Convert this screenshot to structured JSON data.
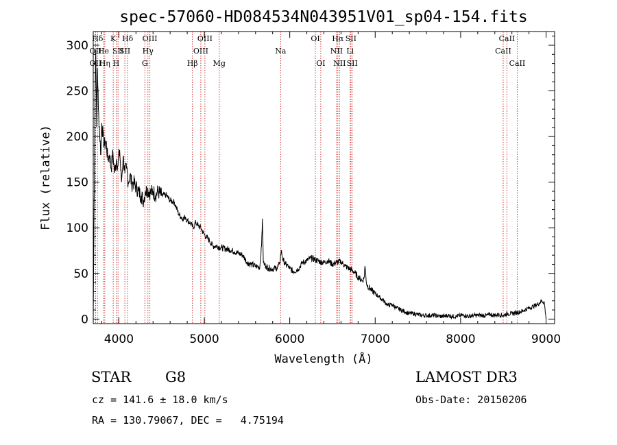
{
  "chart_data": {
    "type": "line",
    "title": "spec-57060-HD084534N043951V01_sp04-154.fits",
    "xlabel": "Wavelength (Å)",
    "ylabel": "Flux (relative)",
    "xlim": [
      3700,
      9100
    ],
    "ylim": [
      -5,
      315
    ],
    "x_ticks": [
      4000,
      5000,
      6000,
      7000,
      8000,
      9000
    ],
    "y_ticks": [
      0,
      50,
      100,
      150,
      200,
      250,
      300
    ],
    "series": [
      {
        "name": "flux",
        "x": [
          3700,
          3710,
          3720,
          3730,
          3740,
          3750,
          3760,
          3775,
          3790,
          3800,
          3815,
          3830,
          3850,
          3870,
          3890,
          3910,
          3930,
          3950,
          3970,
          3990,
          4010,
          4030,
          4050,
          4070,
          4090,
          4110,
          4130,
          4150,
          4170,
          4200,
          4230,
          4260,
          4290,
          4310,
          4340,
          4370,
          4400,
          4430,
          4460,
          4500,
          4550,
          4600,
          4650,
          4700,
          4750,
          4780,
          4800,
          4840,
          4870,
          4900,
          4930,
          4960,
          4990,
          5020,
          5060,
          5100,
          5150,
          5200,
          5250,
          5300,
          5350,
          5400,
          5450,
          5500,
          5550,
          5600,
          5650,
          5670,
          5680,
          5690,
          5700,
          5720,
          5750,
          5800,
          5850,
          5880,
          5900,
          5920,
          5950,
          5980,
          6000,
          6050,
          6100,
          6150,
          6200,
          6250,
          6300,
          6350,
          6400,
          6450,
          6500,
          6550,
          6600,
          6650,
          6700,
          6750,
          6800,
          6850,
          6870,
          6880,
          6890,
          6900,
          6950,
          7000,
          7050,
          7100,
          7150,
          7200,
          7250,
          7300,
          7350,
          7400,
          7450,
          7500,
          7550,
          7600,
          7650,
          7700,
          7750,
          7800,
          7850,
          7900,
          7950,
          8000,
          8050,
          8100,
          8150,
          8200,
          8250,
          8300,
          8350,
          8400,
          8450,
          8500,
          8550,
          8600,
          8650,
          8700,
          8750,
          8800,
          8850,
          8900,
          8950,
          8980,
          9000
        ],
        "values": [
          0,
          120,
          240,
          295,
          210,
          275,
          230,
          205,
          180,
          215,
          200,
          190,
          195,
          175,
          180,
          165,
          182,
          160,
          175,
          168,
          185,
          150,
          178,
          160,
          165,
          150,
          158,
          148,
          150,
          145,
          140,
          135,
          130,
          140,
          142,
          138,
          140,
          136,
          140,
          135,
          136,
          130,
          128,
          115,
          110,
          112,
          108,
          105,
          100,
          106,
          102,
          100,
          94,
          90,
          86,
          80,
          80,
          78,
          77,
          76,
          74,
          72,
          70,
          62,
          60,
          58,
          57,
          80,
          110,
          65,
          60,
          58,
          56,
          55,
          56,
          60,
          75,
          65,
          60,
          58,
          55,
          52,
          55,
          62,
          64,
          67,
          65,
          63,
          62,
          64,
          60,
          62,
          63,
          58,
          55,
          52,
          46,
          42,
          45,
          58,
          48,
          38,
          32,
          28,
          24,
          20,
          15,
          16,
          12,
          10,
          8,
          6,
          6,
          5,
          4,
          4,
          4,
          4,
          3,
          3,
          4,
          3,
          3,
          4,
          4,
          3,
          4,
          4,
          4,
          4,
          5,
          4,
          5,
          4,
          6,
          6,
          7,
          8,
          10,
          12,
          14,
          16,
          20,
          18,
          0
        ]
      }
    ],
    "line_markers": [
      {
        "label": "Hδ",
        "x": 3750,
        "row": 0
      },
      {
        "label": "OII",
        "x": 3727,
        "row": 1
      },
      {
        "label": "OII",
        "x": 3727,
        "row": 2
      },
      {
        "label": "He",
        "x": 3820,
        "row": 1
      },
      {
        "label": "Hη",
        "x": 3835,
        "row": 2
      },
      {
        "label": "K",
        "x": 3934,
        "row": 0
      },
      {
        "label": "SII",
        "x": 3990,
        "row": 1
      },
      {
        "label": "H",
        "x": 3969,
        "row": 2
      },
      {
        "label": "Hδ",
        "x": 4102,
        "row": 0
      },
      {
        "label": "SII",
        "x": 4070,
        "row": 1
      },
      {
        "label": "OIII",
        "x": 4363,
        "row": 0
      },
      {
        "label": "Hγ",
        "x": 4340,
        "row": 1
      },
      {
        "label": "G",
        "x": 4304,
        "row": 2
      },
      {
        "label": "Hβ",
        "x": 4861,
        "row": 2
      },
      {
        "label": "OIII",
        "x": 5007,
        "row": 0
      },
      {
        "label": "OIII",
        "x": 4959,
        "row": 1
      },
      {
        "label": "Mg",
        "x": 5175,
        "row": 2
      },
      {
        "label": "Na",
        "x": 5893,
        "row": 1
      },
      {
        "label": "OI",
        "x": 6300,
        "row": 0
      },
      {
        "label": "OI",
        "x": 6363,
        "row": 2
      },
      {
        "label": "Hα",
        "x": 6563,
        "row": 0
      },
      {
        "label": "SII",
        "x": 6716,
        "row": 0
      },
      {
        "label": "NII",
        "x": 6548,
        "row": 1
      },
      {
        "label": "Li",
        "x": 6707,
        "row": 1
      },
      {
        "label": "NII",
        "x": 6583,
        "row": 2
      },
      {
        "label": "SII",
        "x": 6731,
        "row": 2
      },
      {
        "label": "CaII",
        "x": 8542,
        "row": 0
      },
      {
        "label": "CaII",
        "x": 8498,
        "row": 1
      },
      {
        "label": "CaII",
        "x": 8662,
        "row": 2
      }
    ]
  },
  "info": {
    "object_class": "STAR",
    "subclass": "G8",
    "survey": "LAMOST DR3",
    "redshift": "cz = 141.6 ± 18.0 km/s",
    "obs_date": "Obs-Date: 20150206",
    "coords": "RA = 130.79067, DEC =   4.75194"
  }
}
